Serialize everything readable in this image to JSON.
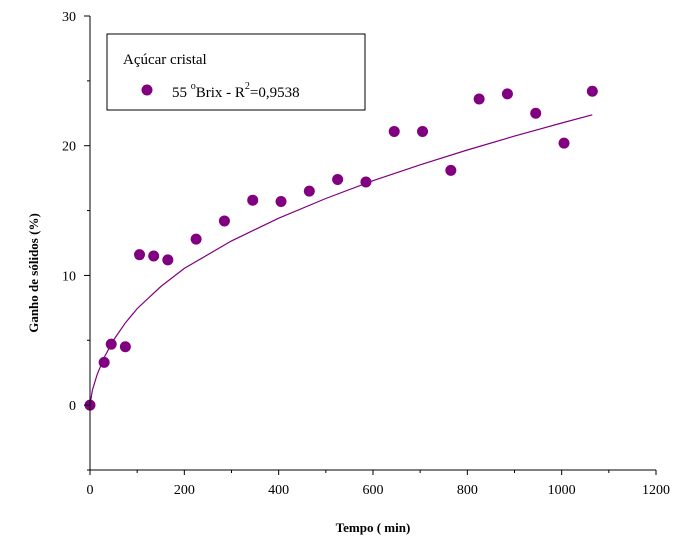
{
  "chart_data": {
    "type": "scatter",
    "title": "",
    "xlabel": "Tempo ( min)",
    "ylabel": "Ganho de sólidos (%)",
    "xlim": [
      0,
      1200
    ],
    "ylim": [
      -5,
      30
    ],
    "xticks": [
      "0",
      "200",
      "400",
      "600",
      "800",
      "1000",
      "1200"
    ],
    "yticks": [
      "0",
      "10",
      "20",
      "30"
    ],
    "grid": false,
    "legend": {
      "title": "Açúcar cristal",
      "placement": "top-left",
      "entry_base": "55 ",
      "entry_sup1": "o",
      "entry_mid": "Brix - R",
      "entry_sup2": "2",
      "entry_end": "=0,9538"
    },
    "series": [
      {
        "name": "55 °Brix - R²=0,9538",
        "color": "#800080",
        "points": [
          {
            "x": 0,
            "y": 0
          },
          {
            "x": 30,
            "y": 3.3
          },
          {
            "x": 45,
            "y": 4.7
          },
          {
            "x": 75,
            "y": 4.5
          },
          {
            "x": 105,
            "y": 11.6
          },
          {
            "x": 135,
            "y": 11.5
          },
          {
            "x": 165,
            "y": 11.2
          },
          {
            "x": 225,
            "y": 12.8
          },
          {
            "x": 285,
            "y": 14.2
          },
          {
            "x": 345,
            "y": 15.8
          },
          {
            "x": 405,
            "y": 15.7
          },
          {
            "x": 465,
            "y": 16.5
          },
          {
            "x": 525,
            "y": 17.4
          },
          {
            "x": 585,
            "y": 17.2
          },
          {
            "x": 645,
            "y": 21.1
          },
          {
            "x": 705,
            "y": 21.1
          },
          {
            "x": 765,
            "y": 18.1
          },
          {
            "x": 825,
            "y": 23.6
          },
          {
            "x": 885,
            "y": 24.0
          },
          {
            "x": 945,
            "y": 22.5
          },
          {
            "x": 1005,
            "y": 20.2
          },
          {
            "x": 1065,
            "y": 24.2
          }
        ]
      }
    ],
    "fit_curve": {
      "color": "#800080",
      "points": [
        {
          "x": 0,
          "y": 0
        },
        {
          "x": 5,
          "y": 1.16
        },
        {
          "x": 15,
          "y": 2.35
        },
        {
          "x": 30,
          "y": 3.68
        },
        {
          "x": 50,
          "y": 5.02
        },
        {
          "x": 75,
          "y": 6.35
        },
        {
          "x": 100,
          "y": 7.44
        },
        {
          "x": 150,
          "y": 9.15
        },
        {
          "x": 200,
          "y": 10.54
        },
        {
          "x": 300,
          "y": 12.66
        },
        {
          "x": 400,
          "y": 14.41
        },
        {
          "x": 500,
          "y": 15.93
        },
        {
          "x": 600,
          "y": 17.3
        },
        {
          "x": 700,
          "y": 18.53
        },
        {
          "x": 800,
          "y": 19.67
        },
        {
          "x": 900,
          "y": 20.74
        },
        {
          "x": 1000,
          "y": 21.75
        },
        {
          "x": 1065,
          "y": 22.38
        }
      ]
    }
  }
}
